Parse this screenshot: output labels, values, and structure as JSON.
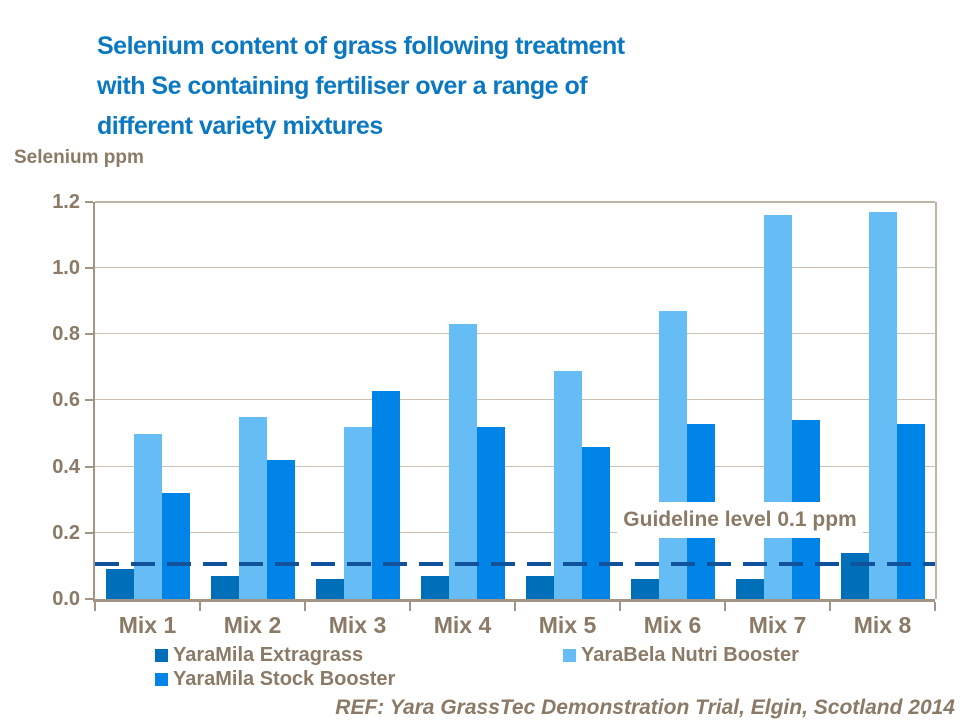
{
  "title": {
    "lines": [
      "Selenium content of grass following treatment",
      "with Se containing fertiliser over a range of",
      "different variety mixtures"
    ],
    "color": "#0B78C2"
  },
  "footer": {
    "text": "REF: Yara GrassTec Demonstration Trial, Elgin, Scotland 2014"
  },
  "colors": {
    "text_brown": "#8A7A66",
    "axis_dark": "#A39585",
    "grid_light": "#CCC0B3",
    "border_light": "#C0B4A6",
    "guideline_dash": "#10529B",
    "background": "#FFFFFF"
  },
  "chart_data": {
    "type": "bar",
    "title": "Selenium content of grass following treatment with Se containing fertiliser over a range of different variety mixtures",
    "ylabel": "Selenium ppm",
    "xlabel": "",
    "ylim": [
      0,
      1.2
    ],
    "ytick_labels": [
      "1.2",
      "1.0",
      "0.8",
      "0.6",
      "0.4",
      "0.2",
      "0.0"
    ],
    "categories": [
      "Mix 1",
      "Mix 2",
      "Mix 3",
      "Mix 4",
      "Mix 5",
      "Mix 6",
      "Mix 7",
      "Mix 8"
    ],
    "series": [
      {
        "name": "YaraMila Extragrass",
        "color": "#006FBA",
        "values": [
          0.09,
          0.07,
          0.06,
          0.07,
          0.07,
          0.06,
          0.06,
          0.14
        ]
      },
      {
        "name": "YaraBela Nutri Booster",
        "color": "#66BCF5",
        "values": [
          0.5,
          0.55,
          0.52,
          0.83,
          0.69,
          0.87,
          1.16,
          1.17
        ]
      },
      {
        "name": "YaraMila Stock Booster",
        "color": "#0084E8",
        "values": [
          0.32,
          0.42,
          0.63,
          0.52,
          0.46,
          0.53,
          0.54,
          0.53
        ]
      }
    ],
    "guideline": {
      "label": "Guideline level 0.1 ppm",
      "value": 0.1
    },
    "grid": true,
    "legend_position": "bottom"
  }
}
